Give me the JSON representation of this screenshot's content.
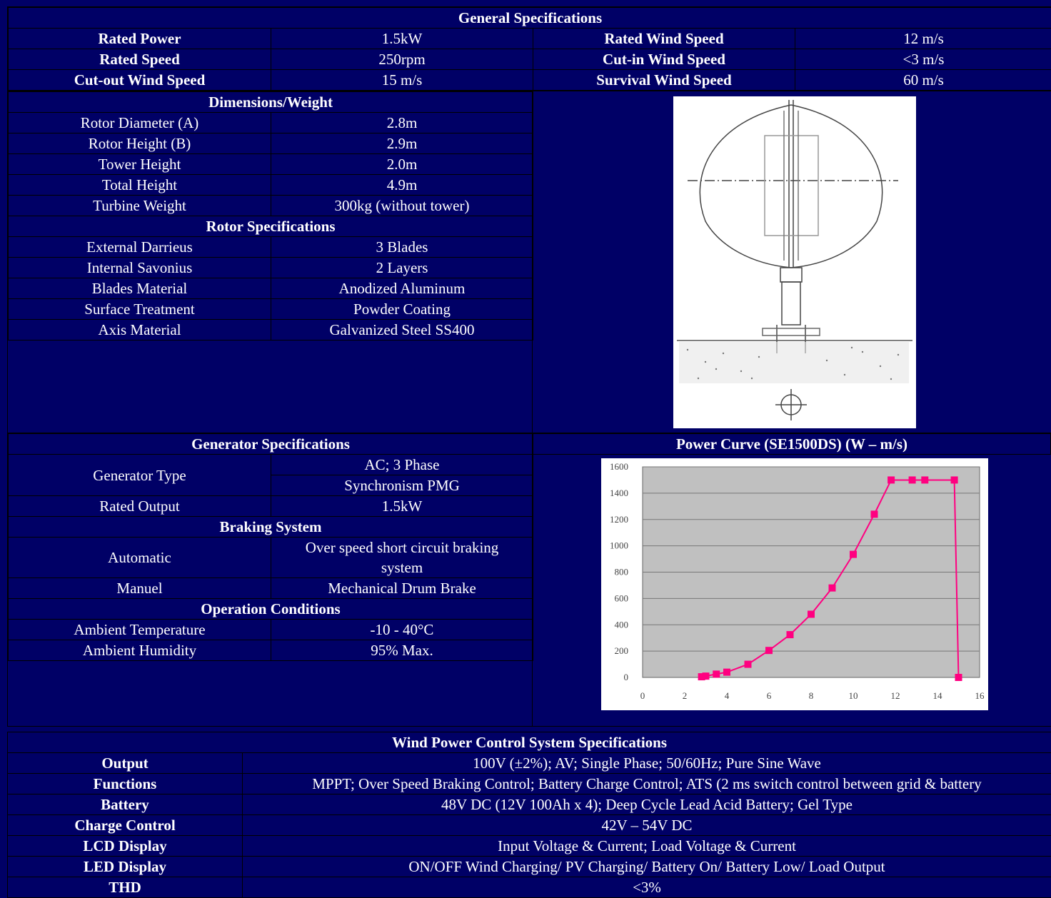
{
  "general": {
    "title": "General Specifications",
    "rows": [
      [
        "Rated Power",
        "1.5kW",
        "Rated Wind Speed",
        "12 m/s"
      ],
      [
        "Rated Speed",
        "250rpm",
        "Cut-in Wind Speed",
        "<3 m/s"
      ],
      [
        "Cut-out Wind Speed",
        "15 m/s",
        "Survival Wind Speed",
        "60 m/s"
      ]
    ]
  },
  "dimensions": {
    "title": "Dimensions/Weight",
    "rows": [
      [
        "Rotor Diameter (A)",
        "2.8m"
      ],
      [
        "Rotor Height (B)",
        "2.9m"
      ],
      [
        "Tower Height",
        "2.0m"
      ],
      [
        "Total Height",
        "4.9m"
      ],
      [
        "Turbine Weight",
        "300kg (without tower)"
      ]
    ]
  },
  "rotor": {
    "title": "Rotor Specifications",
    "rows": [
      [
        "External Darrieus",
        "3 Blades"
      ],
      [
        "Internal Savonius",
        "2 Layers"
      ],
      [
        "Blades Material",
        "Anodized Aluminum"
      ],
      [
        "Surface Treatment",
        "Powder Coating"
      ],
      [
        "Axis Material",
        "Galvanized Steel SS400"
      ]
    ]
  },
  "generator": {
    "title": "Generator Specifications",
    "type_label": "Generator Type",
    "type_values": [
      "AC; 3 Phase",
      "Synchronism PMG"
    ],
    "output_label": "Rated Output",
    "output_value": "1.5kW"
  },
  "braking": {
    "title": "Braking System",
    "automatic_label": "Automatic",
    "automatic_value": "Over speed short circuit braking system",
    "manual_label": "Manuel",
    "manual_value": "Mechanical Drum Brake"
  },
  "operation": {
    "title": "Operation Conditions",
    "rows": [
      [
        "Ambient Temperature",
        "-10 - 40°C"
      ],
      [
        "Ambient Humidity",
        "95% Max."
      ]
    ]
  },
  "power_curve": {
    "title": "Power Curve (SE1500DS) (W – m/s)"
  },
  "chart_data": {
    "type": "line",
    "title": "Power Curve (SE1500DS) (W – m/s)",
    "xlabel": "",
    "ylabel": "",
    "xlim": [
      0,
      16
    ],
    "ylim": [
      0,
      1600
    ],
    "xticks": [
      0,
      2,
      4,
      6,
      8,
      10,
      12,
      14,
      16
    ],
    "yticks": [
      0,
      200,
      400,
      600,
      800,
      1000,
      1200,
      1400,
      1600
    ],
    "grid": true,
    "series": [
      {
        "color": "#ff0080",
        "points": [
          [
            2.8,
            5
          ],
          [
            3.0,
            10
          ],
          [
            3.5,
            25
          ],
          [
            4.0,
            40
          ],
          [
            5.0,
            100
          ],
          [
            6.0,
            205
          ],
          [
            7.0,
            325
          ],
          [
            8.0,
            480
          ],
          [
            9.0,
            680
          ],
          [
            10.0,
            935
          ],
          [
            11.0,
            1240
          ],
          [
            11.8,
            1500
          ],
          [
            12.8,
            1500
          ],
          [
            13.4,
            1500
          ],
          [
            14.8,
            1500
          ],
          [
            15.0,
            0
          ]
        ]
      }
    ],
    "plot_bg": "#c0c0c0"
  },
  "control": {
    "title": "Wind Power Control System Specifications",
    "rows": [
      [
        "Output",
        "100V (±2%); AV; Single Phase; 50/60Hz; Pure Sine Wave"
      ],
      [
        "Functions",
        "MPPT; Over Speed Braking Control; Battery Charge Control; ATS (2 ms switch control between grid & battery"
      ],
      [
        "Battery",
        "48V DC (12V 100Ah x 4); Deep Cycle Lead Acid Battery; Gel Type"
      ],
      [
        "Charge Control",
        "42V – 54V DC"
      ],
      [
        "LCD Display",
        "Input Voltage & Current; Load Voltage & Current"
      ],
      [
        "LED Display",
        "ON/OFF Wind Charging/ PV Charging/ Battery On/ Battery Low/ Load Output"
      ],
      [
        "THD",
        "<3%"
      ]
    ]
  }
}
